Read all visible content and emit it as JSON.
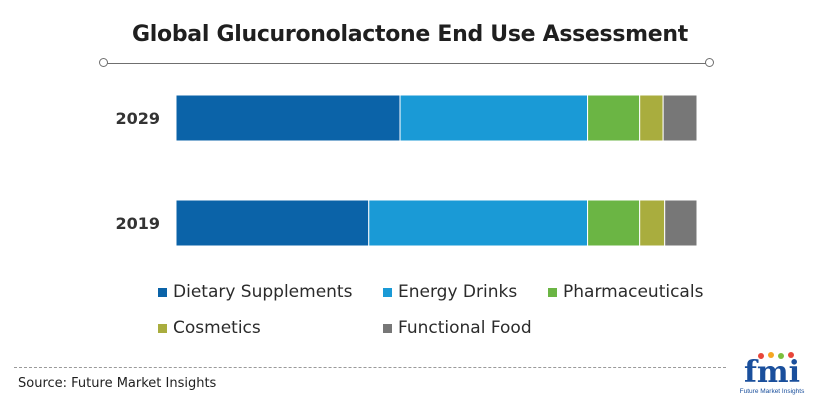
{
  "title": "Global Glucuronolactone End Use Assessment",
  "source": "Source: Future Market Insights",
  "logo": {
    "text": "fmi",
    "subtitle": "Future Market Insights"
  },
  "chart_data": {
    "type": "bar",
    "orientation": "horizontal",
    "stacked": "100%",
    "categories": [
      "2029",
      "2019"
    ],
    "series": [
      {
        "name": "Dietary Supplements",
        "color": "#0b63a8",
        "values": [
          43,
          37
        ]
      },
      {
        "name": "Energy Drinks",
        "color": "#1a9ad6",
        "values": [
          36,
          42
        ]
      },
      {
        "name": "Pharmaceuticals",
        "color": "#6bb544",
        "values": [
          10,
          10
        ]
      },
      {
        "name": "Cosmetics",
        "color": "#a9ad3e",
        "values": [
          4.5,
          4.8
        ]
      },
      {
        "name": "Functional Food",
        "color": "#777777",
        "values": [
          6.5,
          6.2
        ]
      }
    ],
    "xlim": [
      0,
      100
    ],
    "grid": false,
    "legend_position": "bottom"
  }
}
